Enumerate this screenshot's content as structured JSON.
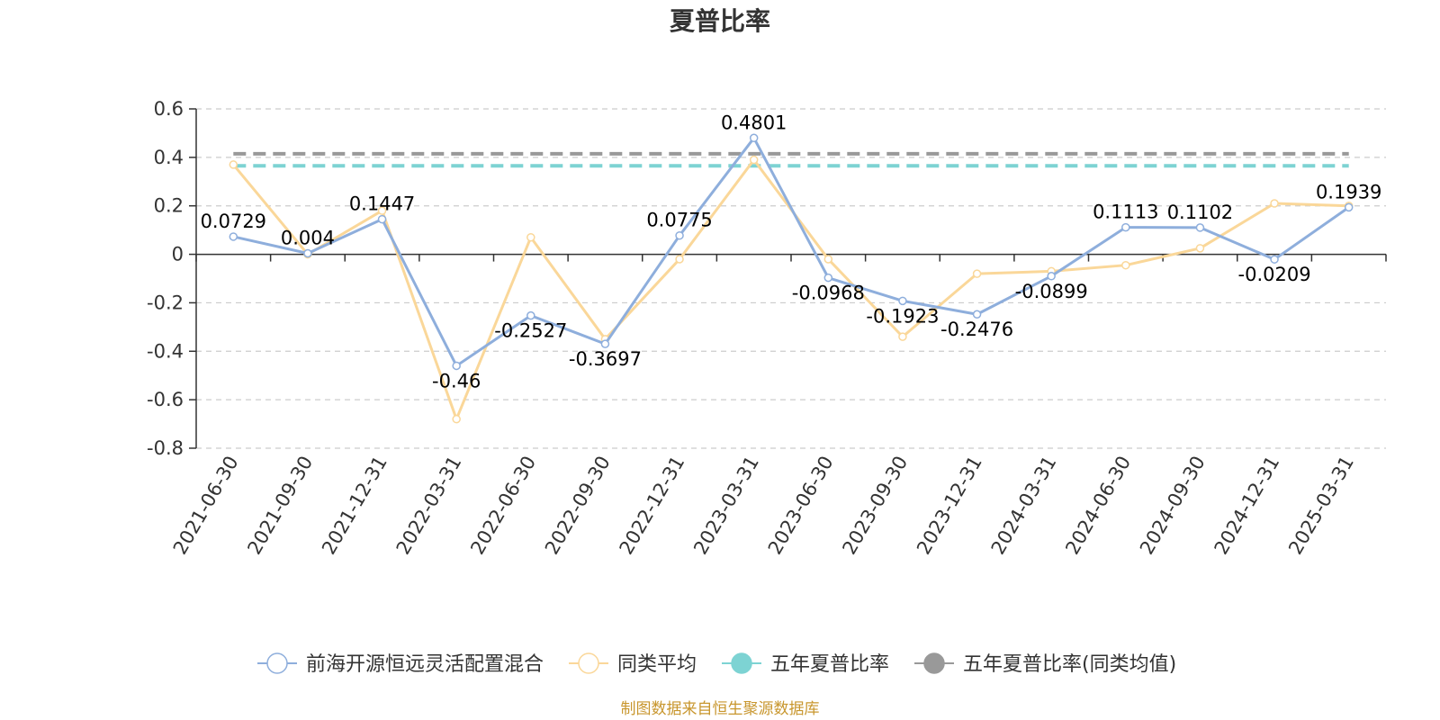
{
  "chart_data": {
    "type": "line",
    "title": "夏普比率",
    "categories": [
      "2021-06-30",
      "2021-09-30",
      "2021-12-31",
      "2022-03-31",
      "2022-06-30",
      "2022-09-30",
      "2022-12-31",
      "2023-03-31",
      "2023-06-30",
      "2023-09-30",
      "2023-12-31",
      "2024-03-31",
      "2024-06-30",
      "2024-09-30",
      "2024-12-31",
      "2025-03-31"
    ],
    "y_ticks": [
      "0.6",
      "0.4",
      "0.2",
      "0",
      "-0.2",
      "-0.4",
      "-0.6",
      "-0.8"
    ],
    "ylim": [
      -0.8,
      0.6
    ],
    "grid": true,
    "legend_position": "bottom",
    "series": [
      {
        "name": "前海开源恒远灵活配置混合",
        "color": "#8eaedc",
        "values": [
          0.0729,
          0.004,
          0.1447,
          -0.46,
          -0.2527,
          -0.3697,
          0.0775,
          0.4801,
          -0.0968,
          -0.1923,
          -0.2476,
          -0.0899,
          0.1113,
          0.1102,
          -0.0209,
          0.1939
        ],
        "labels": [
          "0.0729",
          "0.004",
          "0.1447",
          "-0.46",
          "-0.2527",
          "-0.3697",
          "0.0775",
          "0.4801",
          "-0.0968",
          "-0.1923",
          "-0.2476",
          "-0.0899",
          "0.1113",
          "0.1102",
          "-0.0209",
          "0.1939"
        ]
      },
      {
        "name": "同类平均",
        "color": "#fad799",
        "values": [
          0.37,
          0.0,
          0.18,
          -0.68,
          0.07,
          -0.35,
          -0.02,
          0.39,
          -0.02,
          -0.34,
          -0.08,
          -0.07,
          -0.045,
          0.025,
          0.21,
          0.2
        ]
      },
      {
        "name": "五年夏普比率",
        "color": "#7dd3d3",
        "style": "dashed",
        "constant": 0.365
      },
      {
        "name": "五年夏普比率(同类均值)",
        "color": "#999999",
        "style": "dashed",
        "constant": 0.415
      }
    ]
  },
  "source_note": "制图数据来自恒生聚源数据库"
}
